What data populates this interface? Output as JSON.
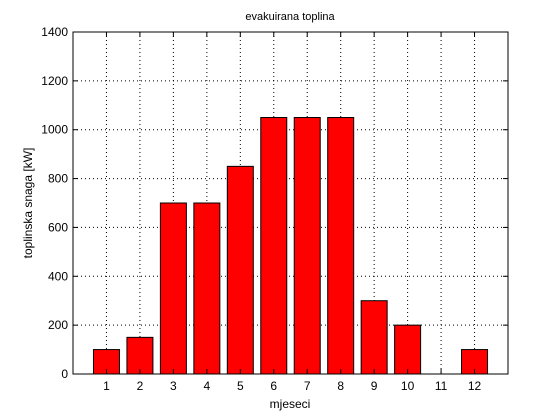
{
  "chart_data": {
    "type": "bar",
    "title": "evakuirana toplina",
    "xlabel": "mjeseci",
    "ylabel": "toplinska snaga [kW]",
    "categories": [
      "1",
      "2",
      "3",
      "4",
      "5",
      "6",
      "7",
      "8",
      "9",
      "10",
      "11",
      "12"
    ],
    "values": [
      100,
      150,
      700,
      700,
      850,
      1050,
      1050,
      1050,
      300,
      200,
      0,
      100
    ],
    "ylim": [
      0,
      1400
    ],
    "yticks": [
      0,
      200,
      400,
      600,
      800,
      1000,
      1200,
      1400
    ],
    "grid": true,
    "bar_color": "#ff0000",
    "bar_edge_color": "#000000"
  }
}
